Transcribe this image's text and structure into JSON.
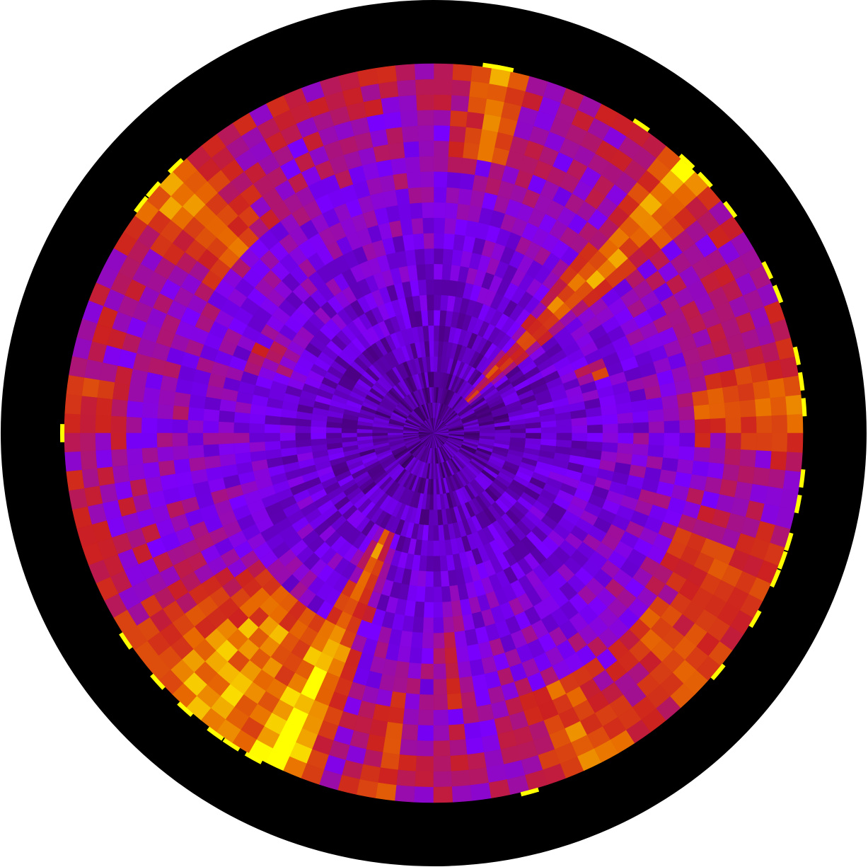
{
  "chart_data": {
    "type": "heatmap",
    "projection": "polar",
    "colormap": "gnuplot",
    "colormap_stops": [
      "#000000",
      "#4a0080",
      "#7a00ff",
      "#cc2020",
      "#e86a00",
      "#ffff00"
    ],
    "background_ring_color": "#000000",
    "value_range": [
      0,
      1
    ],
    "radial_bins": 24,
    "angular_bins": 120,
    "angle_origin": "east",
    "angle_direction": "counterclockwise",
    "grid": false,
    "axis_tick_labels": "none",
    "hotspots": [
      {
        "theta": 45,
        "r_from": 0.12,
        "r_to": 1.0,
        "width": 7,
        "peak": 0.95
      },
      {
        "theta": 80,
        "r_from": 0.75,
        "r_to": 1.0,
        "width": 7,
        "peak": 0.8
      },
      {
        "theta": 137,
        "r_from": 0.72,
        "r_to": 1.0,
        "width": 12,
        "peak": 0.78
      },
      {
        "theta": 5,
        "r_from": 0.7,
        "r_to": 1.0,
        "width": 9,
        "peak": 0.78
      },
      {
        "theta": 20,
        "r_from": 0.4,
        "r_to": 0.48,
        "width": 4,
        "peak": 0.7
      },
      {
        "theta": 230,
        "r_from": 0.6,
        "r_to": 1.0,
        "width": 22,
        "peak": 0.85
      },
      {
        "theta": 245,
        "r_from": 0.3,
        "r_to": 1.0,
        "width": 7,
        "peak": 0.9
      },
      {
        "theta": 262,
        "r_from": 0.7,
        "r_to": 1.0,
        "width": 4,
        "peak": 0.65
      },
      {
        "theta": 275,
        "r_from": 0.45,
        "r_to": 0.75,
        "width": 4,
        "peak": 0.6
      },
      {
        "theta": 297,
        "r_from": 0.75,
        "r_to": 1.0,
        "width": 10,
        "peak": 0.75
      },
      {
        "theta": 318,
        "r_from": 0.75,
        "r_to": 1.0,
        "width": 12,
        "peak": 0.68
      },
      {
        "theta": 335,
        "r_from": 0.7,
        "r_to": 1.0,
        "width": 10,
        "peak": 0.62
      },
      {
        "theta": 175,
        "r_from": 0.82,
        "r_to": 1.0,
        "width": 8,
        "peak": 0.58
      },
      {
        "theta": 155,
        "r_from": 0.35,
        "r_to": 0.55,
        "width": 8,
        "peak": 0.55
      }
    ],
    "outer_marks_theta": [
      4,
      8,
      12,
      22,
      26,
      37,
      43,
      47,
      56,
      79,
      81,
      134,
      139,
      142,
      180,
      214,
      222,
      228,
      234,
      237,
      241,
      285,
      320,
      330,
      337,
      340,
      343,
      349,
      353
    ]
  }
}
